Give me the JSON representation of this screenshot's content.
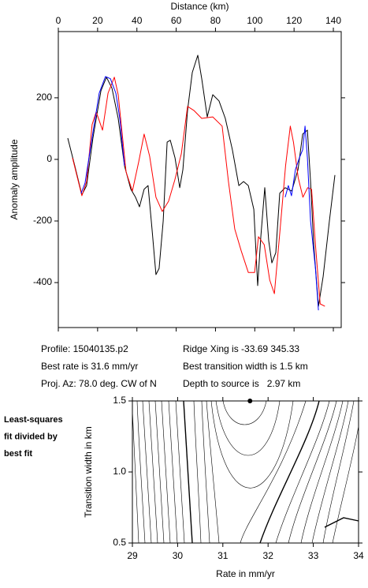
{
  "chart_data": [
    {
      "type": "line",
      "xlabel": "Distance (km)",
      "ylabel": "Anomaly amplitude",
      "xlim": [
        0,
        144
      ],
      "ylim": [
        -546,
        415
      ],
      "xticks": [
        0,
        20,
        40,
        60,
        80,
        100,
        120,
        140
      ],
      "yticks": [
        -400,
        -200,
        0,
        200
      ],
      "series": [
        {
          "color": "#000000",
          "x": [
            4.8,
            8.4,
            12,
            14.4,
            17.6,
            21.7,
            24.5,
            27.3,
            30.5,
            33.7,
            36.9,
            39.3,
            41.3,
            43.7,
            45.7,
            47.7,
            49.7,
            51.3,
            53.4,
            55.4,
            57,
            59.4,
            61.8,
            63.4,
            65.8,
            68.2,
            71,
            73,
            75.8,
            78.6,
            81.8,
            85,
            88.6,
            91.9,
            94.3,
            96.7,
            99.5,
            101.5,
            103.1,
            105.1,
            107.1,
            108.7,
            110.7,
            112.7,
            115.5,
            118.8,
            122,
            124.4,
            126.8,
            128.4,
            130,
            132.4,
            134.8,
            138,
            140.8
          ],
          "values": [
            69,
            -21,
            -115,
            -85,
            69,
            223,
            267,
            231,
            133,
            -21,
            -97,
            -123,
            -154,
            -97,
            -85,
            -226,
            -374,
            -354,
            -200,
            56,
            62,
            5,
            -92,
            -33,
            159,
            282,
            338,
            262,
            138,
            210,
            190,
            133,
            31,
            -85,
            -72,
            -85,
            -162,
            -410,
            -251,
            -92,
            -264,
            -336,
            -303,
            -110,
            -92,
            -103,
            -33,
            82,
            95,
            -72,
            -277,
            -477,
            -380,
            -200,
            -51
          ]
        },
        {
          "color": "#ff0000",
          "x": [
            7.2,
            12,
            14.4,
            17.2,
            19.3,
            22.5,
            25.3,
            28.5,
            30.5,
            34.5,
            37.7,
            40.9,
            43.7,
            46.5,
            49.7,
            52.9,
            56.1,
            59.3,
            62.6,
            65.8,
            69,
            73,
            78.6,
            83.4,
            86.6,
            89.8,
            93.1,
            96.7,
            99.9,
            101.9,
            104.8,
            107.6,
            110,
            112.9,
            115.7,
            118.1,
            119.7,
            122.1,
            124.5,
            126.9,
            128.9,
            130.9,
            133.3,
            135.7
          ],
          "values": [
            5,
            -118,
            -72,
            113,
            154,
            95,
            215,
            267,
            210,
            -41,
            -103,
            -8,
            82,
            10,
            -123,
            -169,
            -136,
            -67,
            18,
            172,
            159,
            133,
            138,
            108,
            -72,
            -226,
            -297,
            -367,
            -367,
            -251,
            -277,
            -392,
            -436,
            -226,
            -21,
            108,
            56,
            -59,
            -123,
            -92,
            -97,
            -277,
            -469,
            -477
          ]
        },
        {
          "color": "#0000ff",
          "x": [
            11.6,
            13.6,
            17.6,
            20.8,
            24,
            26.5,
            29.3,
            31.3,
            33.7,
            74,
            115.5,
            117.1,
            118.7,
            120.7,
            122.7,
            124.4,
            125.6,
            126.8,
            128.4,
            130.9,
            132.4
          ],
          "values": [
            -110,
            -77,
            87,
            215,
            269,
            262,
            215,
            133,
            -21,
            null,
            -123,
            -85,
            -118,
            -33,
            5,
            31,
            108,
            5,
            -200,
            -354,
            -490
          ]
        }
      ],
      "annotations": [
        "Profile: 15040135.p2",
        "Best rate is 31.6 mm/yr",
        "Proj. Az: 78.0 deg. CW of N",
        "Ridge Xing is -33.69 345.33",
        "Best transition width is 1.5 km",
        "Depth to source is   2.97 km"
      ]
    },
    {
      "type": "contour",
      "xlabel": "Rate in mm/yr",
      "ylabel": "Transition width in km",
      "xlim": [
        29,
        34
      ],
      "ylim": [
        0.5,
        1.5
      ],
      "xticks": [
        29,
        30,
        31,
        32,
        33,
        34
      ],
      "yticks": [
        0.5,
        {
          "value": 1,
          "label": "1.0"
        },
        1.5
      ],
      "x": [
        31.6
      ],
      "values": [
        1.5
      ],
      "color": "#000000",
      "annotations": [
        "Least-squares",
        "fit divided by",
        "best fit"
      ]
    }
  ]
}
